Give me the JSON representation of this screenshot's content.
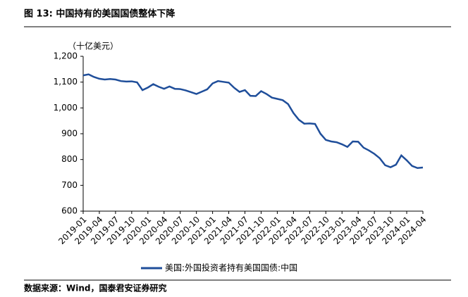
{
  "chart_data": {
    "type": "line",
    "title": "图 13:  中国持有的美国国债整体下降",
    "unit_label": "（十亿美元）",
    "source": "数据来源：Wind，国泰君安证券研究",
    "categories": [
      "2019-01",
      null,
      null,
      "2019-04",
      null,
      null,
      "2019-07",
      null,
      null,
      "2019-10",
      null,
      null,
      "2020-01",
      null,
      null,
      "2020-04",
      null,
      null,
      "2020-07",
      null,
      null,
      "2020-10",
      null,
      null,
      "2021-01",
      null,
      null,
      "2021-04",
      null,
      null,
      "2021-07",
      null,
      null,
      "2021-10",
      null,
      null,
      "2022-01",
      null,
      null,
      "2022-04",
      null,
      null,
      "2022-07",
      null,
      null,
      "2022-10",
      null,
      null,
      "2023-01",
      null,
      null,
      "2023-04",
      null,
      null,
      "2023-07",
      null,
      null,
      "2023-10",
      null,
      null,
      "2024-01",
      null,
      null,
      "2024-04"
    ],
    "series": [
      {
        "name": "美国:外国投资者持有美国国债:中国",
        "color": "#1f4e9a",
        "values": [
          1126,
          1130,
          1120,
          1113,
          1110,
          1112,
          1110,
          1104,
          1102,
          1103,
          1099,
          1069,
          1079,
          1092,
          1082,
          1074,
          1083,
          1074,
          1073,
          1068,
          1061,
          1054,
          1063,
          1072,
          1095,
          1104,
          1101,
          1098,
          1078,
          1062,
          1069,
          1047,
          1046,
          1065,
          1054,
          1040,
          1035,
          1030,
          1015,
          980,
          954,
          939,
          940,
          938,
          900,
          876,
          870,
          867,
          859,
          849,
          870,
          869,
          846,
          835,
          822,
          805,
          778,
          770,
          780,
          816,
          797,
          775,
          767,
          769
        ]
      }
    ],
    "ylim": [
      600,
      1200
    ],
    "yticks": [
      600,
      700,
      800,
      900,
      {
        "value": 1000,
        "label": "1,000"
      },
      {
        "value": 1100,
        "label": "1,100"
      },
      {
        "value": 1200,
        "label": "1,200"
      }
    ],
    "grid": false
  }
}
